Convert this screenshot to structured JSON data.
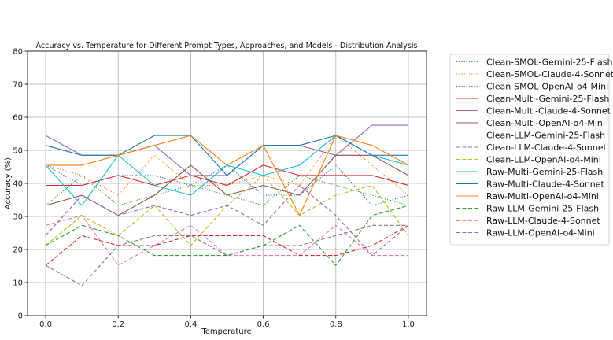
{
  "chart_data": {
    "type": "line",
    "title": "Accuracy vs. Temperature for Different Prompt Types, Approaches, and Models - Distribution Analysis",
    "xlabel": "Temperature",
    "ylabel": "Accuracy (%)",
    "xlim": [
      -0.05,
      1.05
    ],
    "ylim": [
      0,
      80
    ],
    "xticks": [
      "0.0",
      "0.2",
      "0.4",
      "0.6",
      "0.8",
      "1.0"
    ],
    "yticks": [
      "0",
      "10",
      "20",
      "30",
      "40",
      "50",
      "60",
      "70",
      "80"
    ],
    "grid": true,
    "legend_position": "right",
    "x": [
      0.0,
      0.1,
      0.2,
      0.3,
      0.4,
      0.5,
      0.6,
      0.7,
      0.8,
      0.9,
      1.0
    ],
    "series": [
      {
        "name": "Clean-SMOL-Gemini-25-Flash",
        "color": "#1f77b4",
        "dash": "dotted",
        "values": [
          45.5,
          39.4,
          42.4,
          42.4,
          39.4,
          45.5,
          36.4,
          36.4,
          45.5,
          33.3,
          36.4
        ]
      },
      {
        "name": "Clean-SMOL-Claude-4-Sonnet",
        "color": "#ff7f0e",
        "dash": "dotted",
        "values": [
          45.5,
          42.4,
          36.4,
          48.5,
          39.4,
          39.4,
          42.4,
          39.4,
          54.5,
          45.5,
          36.4
        ]
      },
      {
        "name": "Clean-SMOL-OpenAI-o4-Mini",
        "color": "#2ca02c",
        "dash": "dotted",
        "values": [
          33.3,
          42.4,
          33.3,
          36.4,
          39.4,
          36.4,
          33.3,
          42.4,
          39.4,
          36.4,
          33.3
        ]
      },
      {
        "name": "Clean-Multi-Gemini-25-Flash",
        "color": "#d62728",
        "dash": "solid",
        "values": [
          39.4,
          39.4,
          42.4,
          39.4,
          42.4,
          39.4,
          45.5,
          42.4,
          42.4,
          42.4,
          39.4
        ]
      },
      {
        "name": "Clean-Multi-Claude-4-Sonnet",
        "color": "#9467bd",
        "dash": "solid",
        "values": [
          54.5,
          48.5,
          48.5,
          51.5,
          42.4,
          42.4,
          51.5,
          51.5,
          48.5,
          57.6,
          57.6
        ]
      },
      {
        "name": "Clean-Multi-OpenAI-o4-Mini",
        "color": "#8c564b",
        "dash": "solid",
        "values": [
          33.3,
          36.4,
          30.3,
          36.4,
          45.5,
          36.4,
          39.4,
          36.4,
          48.5,
          48.5,
          42.4
        ]
      },
      {
        "name": "Clean-LLM-Gemini-25-Flash",
        "color": "#e377c2",
        "dash": "dashed",
        "values": [
          27.3,
          30.3,
          15.2,
          21.2,
          27.3,
          18.2,
          18.2,
          18.2,
          27.3,
          18.2,
          18.2
        ]
      },
      {
        "name": "Clean-LLM-Claude-4-Sonnet",
        "color": "#7f7f7f",
        "dash": "dashed",
        "values": [
          15.2,
          9.1,
          21.2,
          24.2,
          24.2,
          18.2,
          21.2,
          21.2,
          24.2,
          27.3,
          27.3
        ]
      },
      {
        "name": "Clean-LLM-OpenAI-o4-Mini",
        "color": "#bcbd22",
        "dash": "dashed",
        "values": [
          21.2,
          30.3,
          24.2,
          33.3,
          21.2,
          33.3,
          42.4,
          30.3,
          36.4,
          39.4,
          24.2
        ]
      },
      {
        "name": "Raw-Multi-Gemini-25-Flash",
        "color": "#17becf",
        "dash": "solid",
        "values": [
          45.5,
          33.3,
          48.5,
          39.4,
          36.4,
          45.5,
          42.4,
          45.5,
          54.5,
          48.5,
          45.5
        ]
      },
      {
        "name": "Raw-Multi-Claude-4-Sonnet",
        "color": "#1f77b4",
        "dash": "solid",
        "values": [
          51.5,
          48.5,
          48.5,
          54.5,
          54.5,
          42.4,
          51.5,
          51.5,
          54.5,
          48.5,
          48.5
        ]
      },
      {
        "name": "Raw-Multi-OpenAI-o4-Mini",
        "color": "#ff7f0e",
        "dash": "solid",
        "values": [
          45.5,
          45.5,
          48.5,
          51.5,
          54.5,
          45.5,
          51.5,
          30.3,
          54.5,
          51.5,
          45.5
        ]
      },
      {
        "name": "Raw-LLM-Gemini-25-Flash",
        "color": "#2ca02c",
        "dash": "dashed",
        "values": [
          21.2,
          27.3,
          24.2,
          18.2,
          18.2,
          18.2,
          21.2,
          27.3,
          15.2,
          30.3,
          33.3
        ]
      },
      {
        "name": "Raw-LLM-Claude-4-Sonnet",
        "color": "#d62728",
        "dash": "dashed",
        "values": [
          15.2,
          24.2,
          21.2,
          21.2,
          24.2,
          24.2,
          24.2,
          18.2,
          18.2,
          21.2,
          27.3
        ]
      },
      {
        "name": "Raw-LLM-OpenAI-o4-Mini",
        "color": "#9467bd",
        "dash": "dashed",
        "values": [
          24.2,
          36.4,
          30.3,
          33.3,
          30.3,
          33.3,
          27.3,
          39.4,
          30.3,
          18.2,
          27.3
        ]
      }
    ]
  }
}
